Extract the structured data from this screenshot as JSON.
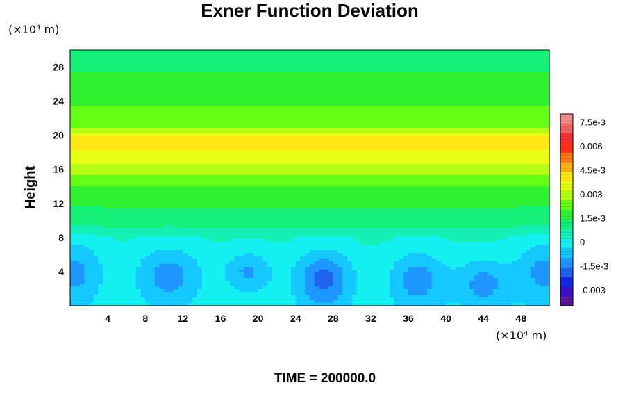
{
  "chart_data": {
    "type": "heatmap",
    "title": "Exner Function Deviation",
    "ylabel": "Height",
    "x_unit_label": "(×10⁴ m)",
    "y_unit_label": "(×10⁴ m)",
    "xlim": [
      0,
      51
    ],
    "ylim": [
      0,
      30
    ],
    "x_ticks": [
      4,
      8,
      12,
      16,
      20,
      24,
      28,
      32,
      36,
      40,
      44,
      48
    ],
    "x_tick_labels": [
      "4",
      "8",
      "12",
      "16",
      "20",
      "24",
      "28",
      "32",
      "36",
      "40",
      "44",
      "48"
    ],
    "y_ticks": [
      4,
      8,
      12,
      16,
      20,
      24,
      28
    ],
    "y_tick_labels": [
      "4",
      "8",
      "12",
      "16",
      "20",
      "24",
      "28"
    ],
    "colorbar": {
      "range": [
        -0.004,
        0.008
      ],
      "ticks": [
        0.0075,
        0.006,
        0.0045,
        0.003,
        0.0015,
        0,
        -0.0015,
        -0.003
      ],
      "tick_labels": [
        "7.5e-3",
        "0.006",
        "4.5e-3",
        "0.003",
        "1.5e-3",
        "0",
        "-1.5e-3",
        "-0.003"
      ],
      "colors": [
        "#5a1a9a",
        "#3a10c8",
        "#1428e6",
        "#1e64f0",
        "#1e96ff",
        "#14c8ff",
        "#14f0f0",
        "#14f0b4",
        "#14f078",
        "#32f032",
        "#64ff14",
        "#b4ff14",
        "#e6ff14",
        "#ffe614",
        "#ffb414",
        "#ff7814",
        "#ff3214",
        "#f03232",
        "#f06464",
        "#f08c8c"
      ]
    },
    "field_profile": {
      "heights": [
        0,
        2,
        4,
        6,
        8,
        9,
        10,
        12,
        14,
        16,
        17,
        18,
        19,
        20,
        21,
        22,
        24,
        26,
        28,
        30
      ],
      "values": [
        0.0,
        0.0001,
        0.0001,
        0.0002,
        0.0003,
        0.0008,
        0.0011,
        0.0015,
        0.002,
        0.0029,
        0.0034,
        0.0037,
        0.0044,
        0.0036,
        0.0024,
        0.0023,
        0.0019,
        0.0016,
        0.0013,
        0.0008
      ]
    },
    "low_cells": [
      {
        "x": 0.5,
        "y": 4.0,
        "rx": 3.0,
        "ry": 4.0,
        "v": -0.0013
      },
      {
        "x": 10.5,
        "y": 3.5,
        "rx": 3.5,
        "ry": 3.5,
        "v": -0.0014
      },
      {
        "x": 19.0,
        "y": 4.0,
        "rx": 2.5,
        "ry": 2.5,
        "v": -0.0012
      },
      {
        "x": 27.0,
        "y": 3.0,
        "rx": 3.0,
        "ry": 3.5,
        "v": -0.0019
      },
      {
        "x": 37.0,
        "y": 3.0,
        "rx": 3.0,
        "ry": 3.5,
        "v": -0.0014
      },
      {
        "x": 44.0,
        "y": 2.5,
        "rx": 3.0,
        "ry": 3.0,
        "v": -0.0013
      },
      {
        "x": 50.5,
        "y": 4.0,
        "rx": 3.0,
        "ry": 4.0,
        "v": -0.0013
      }
    ],
    "annotation": "TIME = 200000.0"
  }
}
